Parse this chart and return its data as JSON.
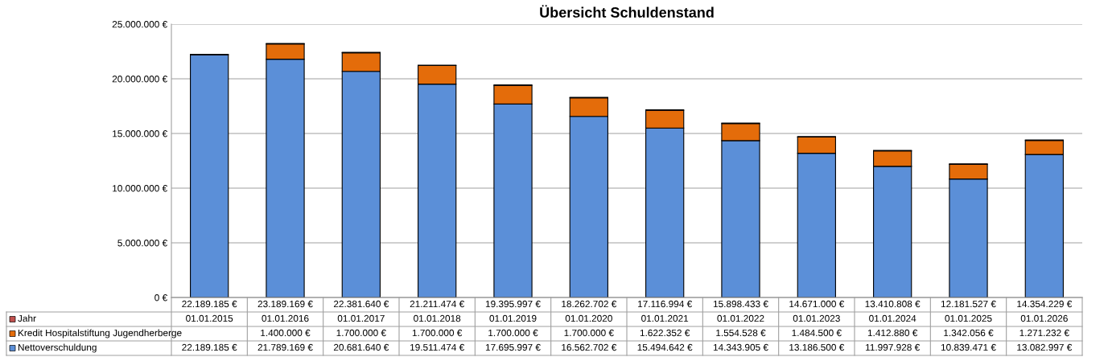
{
  "chart_data": {
    "type": "bar",
    "title": "Übersicht Schuldenstand",
    "stacked": true,
    "categories": [
      "22.189.185 €",
      "23.189.169 €",
      "22.381.640 €",
      "21.211.474 €",
      "19.395.997 €",
      "18.262.702 €",
      "17.116.994 €",
      "15.898.433 €",
      "14.671.000 €",
      "13.410.808 €",
      "12.181.527 €",
      "14.354.229 €"
    ],
    "series": [
      {
        "name": "Nettoverschuldung",
        "color": "#5b8fd8",
        "values": [
          22189185,
          21789169,
          20681640,
          19511474,
          17695997,
          16562702,
          15494642,
          14343905,
          13186500,
          11997928,
          10839471,
          13082997
        ],
        "value_labels": [
          "22.189.185 €",
          "21.789.169 €",
          "20.681.640 €",
          "19.511.474 €",
          "17.695.997 €",
          "16.562.702 €",
          "15.494.642 €",
          "14.343.905 €",
          "13.186.500 €",
          "11.997.928 €",
          "10.839.471 €",
          "13.082.997 €"
        ]
      },
      {
        "name": "Kredit Hospitalstiftung Jugendherberge",
        "color": "#e46c0a",
        "values": [
          null,
          1400000,
          1700000,
          1700000,
          1700000,
          1700000,
          1622352,
          1554528,
          1484500,
          1412880,
          1342056,
          1271232
        ],
        "value_labels": [
          null,
          "1.400.000 €",
          "1.700.000 €",
          "1.700.000 €",
          "1.700.000 €",
          "1.700.000 €",
          "1.622.352 €",
          "1.554.528 €",
          "1.484.500 €",
          "1.412.880 €",
          "1.342.056 €",
          "1.271.232 €"
        ]
      },
      {
        "name": "Jahr",
        "color": "#c0504d",
        "values": [
          42005,
          42370,
          42736,
          43101,
          43466,
          43831,
          44197,
          44562,
          44927,
          45292,
          45658,
          46023
        ],
        "value_labels": [
          "01.01.2015",
          "01.01.2016",
          "01.01.2017",
          "01.01.2018",
          "01.01.2019",
          "01.01.2020",
          "01.01.2021",
          "01.01.2022",
          "01.01.2023",
          "01.01.2024",
          "01.01.2025",
          "01.01.2026"
        ]
      }
    ],
    "ylim": [
      0,
      25000000
    ],
    "yticks": [
      {
        "value": 0,
        "label": "0 €"
      },
      {
        "value": 5000000,
        "label": "5.000.000 €"
      },
      {
        "value": 10000000,
        "label": "10.000.000 €"
      },
      {
        "value": 15000000,
        "label": "15.000.000 €"
      },
      {
        "value": 20000000,
        "label": "20.000.000 €"
      },
      {
        "value": 25000000,
        "label": "25.000.000 €"
      }
    ],
    "grid": "y",
    "legend": "bottom left"
  }
}
